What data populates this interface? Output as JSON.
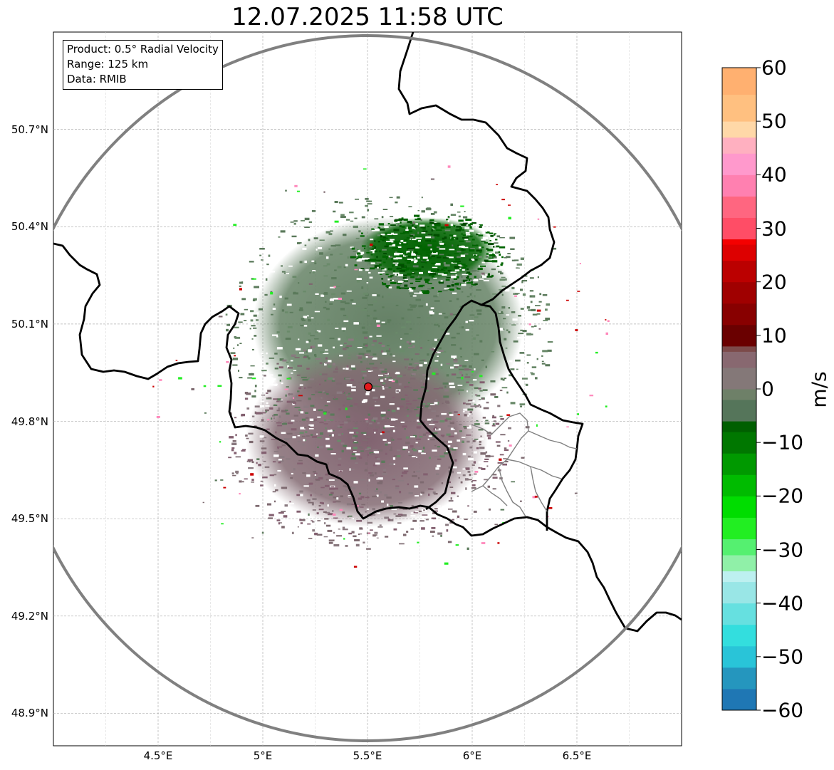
{
  "title": "12.07.2025 11:58 UTC",
  "info_box": {
    "product": "Product: 0.5° Radial Velocity",
    "range": "Range: 125 km",
    "data": "Data: RMIB"
  },
  "axes": {
    "lon_ticks": [
      "4.5°E",
      "5°E",
      "5.5°E",
      "6°E",
      "6.5°E"
    ],
    "lat_ticks": [
      "50.7°N",
      "50.4°N",
      "50.1°N",
      "49.8°N",
      "49.5°N",
      "49.2°N",
      "48.9°N"
    ],
    "lon_range": [
      4.0,
      7.0
    ],
    "lat_range": [
      48.8,
      51.0
    ],
    "gridlines": true
  },
  "radar": {
    "site_lon": 5.5,
    "site_lat": 49.914,
    "site_marker_color": "#e31a1c",
    "range_ring_color": "#808080",
    "range_km": 125
  },
  "colorbar": {
    "label": "m/s",
    "min": -60,
    "max": 60,
    "ticks": [
      "60",
      "50",
      "40",
      "30",
      "20",
      "10",
      "0",
      "−10",
      "−20",
      "−30",
      "−40",
      "−50",
      "−60"
    ],
    "tick_values": [
      60,
      50,
      40,
      30,
      20,
      10,
      0,
      -10,
      -20,
      -30,
      -40,
      -50,
      -60
    ],
    "color_stops": [
      {
        "v": -60,
        "c": "#1f77b4"
      },
      {
        "v": -56,
        "c": "#2596be"
      },
      {
        "v": -52,
        "c": "#29c4d8"
      },
      {
        "v": -48,
        "c": "#33dede"
      },
      {
        "v": -44,
        "c": "#66e0e0"
      },
      {
        "v": -40,
        "c": "#99e6e6"
      },
      {
        "v": -36,
        "c": "#bdf0f0"
      },
      {
        "v": -34,
        "c": "#90f0a8"
      },
      {
        "v": -31,
        "c": "#55f070"
      },
      {
        "v": -28,
        "c": "#22ee22"
      },
      {
        "v": -24,
        "c": "#00dd00"
      },
      {
        "v": -20,
        "c": "#00bb00"
      },
      {
        "v": -16,
        "c": "#009900"
      },
      {
        "v": -12,
        "c": "#007700"
      },
      {
        "v": -8,
        "c": "#005f00"
      },
      {
        "v": -6,
        "c": "#55755a"
      },
      {
        "v": -2,
        "c": "#6e8068"
      },
      {
        "v": 0,
        "c": "#847878"
      },
      {
        "v": 4,
        "c": "#886870"
      },
      {
        "v": 7,
        "c": "#7c4a4a"
      },
      {
        "v": 8,
        "c": "#6a0000"
      },
      {
        "v": 12,
        "c": "#880000"
      },
      {
        "v": 16,
        "c": "#a00000"
      },
      {
        "v": 20,
        "c": "#bb0000"
      },
      {
        "v": 24,
        "c": "#dd0000"
      },
      {
        "v": 27,
        "c": "#f40000"
      },
      {
        "v": 28,
        "c": "#ff4d66"
      },
      {
        "v": 32,
        "c": "#ff6680"
      },
      {
        "v": 36,
        "c": "#ff80b0"
      },
      {
        "v": 40,
        "c": "#ff99cc"
      },
      {
        "v": 44,
        "c": "#ffb0c0"
      },
      {
        "v": 47,
        "c": "#ffd8a8"
      },
      {
        "v": 50,
        "c": "#ffc080"
      },
      {
        "v": 55,
        "c": "#ffb070"
      },
      {
        "v": 60,
        "c": "#ff9955"
      }
    ]
  },
  "map": {
    "border_color": "#000000",
    "province_color": "#808080",
    "echo_colors": {
      "green_dark": "#006400",
      "green_mid": "#5b7a5b",
      "gray_mauve": "#7e6a70",
      "mauve": "#836070",
      "red": "#cc0000",
      "bright_green": "#22ee22",
      "pink": "#ff88bb"
    }
  }
}
